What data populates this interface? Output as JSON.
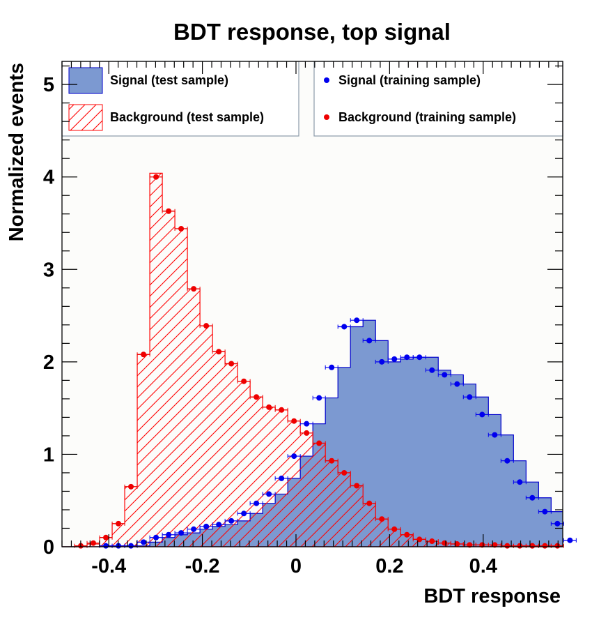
{
  "chart_data": {
    "type": "histogram",
    "title": "BDT response, top signal",
    "xlabel": "BDT response",
    "ylabel": "Normalized events",
    "xlim": [
      -0.5,
      0.57
    ],
    "ylim": [
      0,
      5.25
    ],
    "x_ticks": [
      {
        "value": -0.4,
        "label": "-0.4"
      },
      {
        "value": -0.2,
        "label": "-0.2"
      },
      {
        "value": 0,
        "label": "0"
      },
      {
        "value": 0.2,
        "label": "0.2"
      },
      {
        "value": 0.4,
        "label": "0.4"
      }
    ],
    "y_ticks": [
      {
        "value": 0,
        "label": "0"
      },
      {
        "value": 1,
        "label": "1"
      },
      {
        "value": 2,
        "label": "2"
      },
      {
        "value": 3,
        "label": "3"
      },
      {
        "value": 4,
        "label": "4"
      },
      {
        "value": 5,
        "label": "5"
      }
    ],
    "grid": false,
    "legend_position": "top",
    "bin_start": -0.5,
    "bin_width": 0.0268,
    "series": [
      {
        "name": "Signal (test sample)",
        "style": "filled-histogram",
        "fill": "#7c99d1",
        "line": "#0000cc",
        "values": [
          0,
          0,
          0,
          0.01,
          0.01,
          0.01,
          0.01,
          0.05,
          0.1,
          0.13,
          0.15,
          0.19,
          0.22,
          0.24,
          0.28,
          0.36,
          0.47,
          0.57,
          0.74,
          0.98,
          1.33,
          1.61,
          1.94,
          2.38,
          2.45,
          2.23,
          2.0,
          2.03,
          2.05,
          2.05,
          1.91,
          1.86,
          1.76,
          1.62,
          1.43,
          1.21,
          0.93,
          0.7,
          0.53,
          0.38,
          0.25,
          0.07
        ]
      },
      {
        "name": "Background (test sample)",
        "style": "hatched-histogram",
        "line": "#ff0000",
        "values": [
          0,
          0.01,
          0.03,
          0.1,
          0.25,
          0.65,
          2.08,
          4.04,
          3.63,
          3.44,
          2.79,
          2.39,
          2.11,
          1.98,
          1.79,
          1.62,
          1.51,
          1.48,
          1.36,
          1.23,
          1.12,
          0.93,
          0.8,
          0.66,
          0.47,
          0.3,
          0.19,
          0.13,
          0.08,
          0.06,
          0.04,
          0.03,
          0.02,
          0.02,
          0.02,
          0.01,
          0.01,
          0.01,
          0.01,
          0.01,
          0,
          0
        ]
      },
      {
        "name": "Signal (training sample)",
        "style": "points",
        "color": "#0000ee",
        "values": [
          0,
          0,
          0,
          0.01,
          0.01,
          0.01,
          0.05,
          0.1,
          0.13,
          0.15,
          0.19,
          0.22,
          0.24,
          0.28,
          0.36,
          0.47,
          0.57,
          0.74,
          0.98,
          1.33,
          1.61,
          1.94,
          2.38,
          2.45,
          2.23,
          2.0,
          2.03,
          2.05,
          2.05,
          1.91,
          1.86,
          1.76,
          1.62,
          1.43,
          1.21,
          0.93,
          0.7,
          0.53,
          0.38,
          0.25,
          0.07,
          0
        ]
      },
      {
        "name": "Background (training sample)",
        "style": "points",
        "color": "#ee0000",
        "values": [
          0,
          0.01,
          0.04,
          0.1,
          0.25,
          0.65,
          2.08,
          4.0,
          3.63,
          3.44,
          2.79,
          2.39,
          2.11,
          1.98,
          1.79,
          1.62,
          1.51,
          1.48,
          1.36,
          1.23,
          1.12,
          0.93,
          0.8,
          0.66,
          0.47,
          0.3,
          0.19,
          0.13,
          0.08,
          0.06,
          0.04,
          0.03,
          0.02,
          0.02,
          0.02,
          0.01,
          0.01,
          0.01,
          0.01,
          0.01,
          0,
          0
        ]
      }
    ]
  },
  "legend": {
    "items": [
      {
        "label": "Signal (test sample)"
      },
      {
        "label": "Background (test sample)"
      },
      {
        "label": "Signal (training sample)"
      },
      {
        "label": "Background (training sample)"
      }
    ]
  }
}
